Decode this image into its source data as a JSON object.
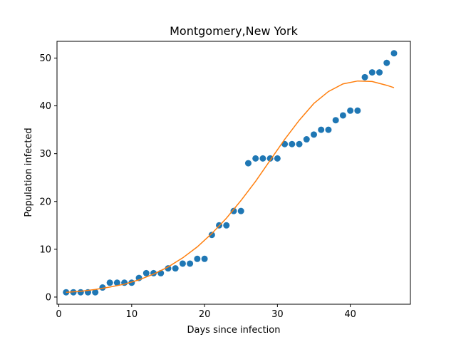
{
  "chart_data": {
    "type": "scatter",
    "title": "Montgomery,New York",
    "xlabel": "Days since infection",
    "ylabel": "Population infected",
    "xlim": [
      -0.25,
      48.25
    ],
    "ylim": [
      -1.5,
      53.5
    ],
    "xticks": [
      0,
      10,
      20,
      30,
      40
    ],
    "yticks": [
      0,
      10,
      20,
      30,
      40,
      50
    ],
    "grid": false,
    "series": [
      {
        "kind": "scatter",
        "color": "#1f77b4",
        "x": [
          1,
          2,
          3,
          4,
          5,
          6,
          7,
          8,
          9,
          10,
          11,
          12,
          13,
          14,
          15,
          16,
          17,
          18,
          19,
          20,
          21,
          22,
          23,
          24,
          25,
          26,
          27,
          28,
          29,
          30,
          31,
          32,
          33,
          34,
          35,
          36,
          37,
          38,
          39,
          40,
          41,
          42,
          43,
          44,
          45,
          46
        ],
        "y": [
          1,
          1,
          1,
          1,
          1,
          2,
          3,
          3,
          3,
          3,
          4,
          5,
          5,
          5,
          6,
          6,
          7,
          7,
          8,
          8,
          13,
          15,
          15,
          18,
          18,
          28,
          29,
          29,
          29,
          29,
          32,
          32,
          32,
          33,
          34,
          35,
          35,
          37,
          38,
          39,
          39,
          46,
          47,
          47,
          49,
          51
        ]
      },
      {
        "kind": "line",
        "color": "#ff7f0e",
        "x": [
          1,
          3,
          5,
          7,
          9,
          11,
          13,
          15,
          17,
          19,
          21,
          23,
          25,
          27,
          29,
          31,
          33,
          35,
          37,
          39,
          41,
          43,
          45,
          46
        ],
        "y": [
          1.0,
          1.2,
          1.6,
          2.1,
          2.7,
          3.6,
          4.8,
          6.3,
          8.2,
          10.5,
          13.3,
          16.5,
          20.2,
          24.2,
          28.6,
          33.0,
          37.0,
          40.5,
          43.0,
          44.6,
          45.2,
          45.1,
          44.3,
          43.8
        ]
      }
    ]
  }
}
